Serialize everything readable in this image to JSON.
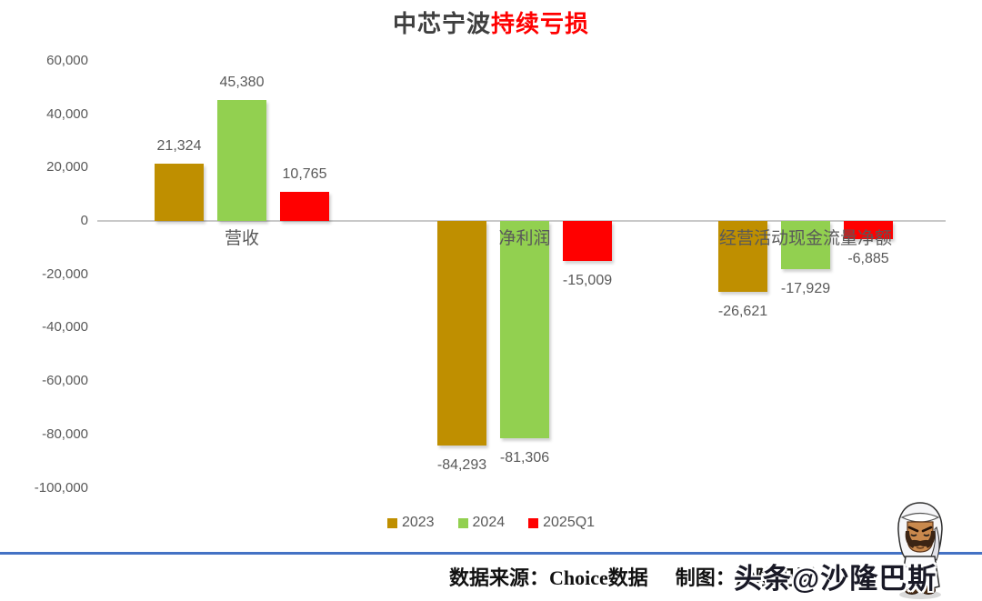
{
  "title": {
    "text_plain": "中芯宁波",
    "text_highlight": "持续亏损",
    "highlight_color": "#ff0000"
  },
  "chart_data": {
    "type": "bar",
    "title": "中芯宁波持续亏损",
    "categories": [
      "营收",
      "净利润",
      "经营活动现金流量净额"
    ],
    "series": [
      {
        "name": "2023",
        "color": "#BF8F00",
        "values": [
          21324,
          -84293,
          -26621
        ],
        "labels": [
          "21,324",
          "-84,293",
          "-26,621"
        ]
      },
      {
        "name": "2024",
        "color": "#92D050",
        "values": [
          45380,
          -81306,
          -17929
        ],
        "labels": [
          "45,380",
          "-81,306",
          "-17,929"
        ]
      },
      {
        "name": "2025Q1",
        "color": "#FF0000",
        "values": [
          10765,
          -15009,
          -6885
        ],
        "labels": [
          "10,765",
          "-15,009",
          "-6,885"
        ]
      }
    ],
    "y_axis": {
      "ticks": [
        "60,000",
        "40,000",
        "20,000",
        "0",
        "-20,000",
        "-40,000",
        "-60,000",
        "-80,000",
        "-100,000"
      ],
      "min": -100000,
      "max": 60000,
      "step": 20000
    },
    "grid": false,
    "legend_position": "bottom",
    "xlabel": "",
    "ylabel": ""
  },
  "legend": {
    "items": [
      {
        "label": "2023",
        "color": "#BF8F00"
      },
      {
        "label": "2024",
        "color": "#92D050"
      },
      {
        "label": "2025Q1",
        "color": "#FF0000"
      }
    ]
  },
  "footer": {
    "source": "数据来源：Choice数据",
    "credit": "制图：沙隆巴斯"
  },
  "watermark": {
    "text": "头条@沙隆巴斯",
    "avatar": "cartoon-arab-man-avatar"
  },
  "colors": {
    "divider": "#4472C4",
    "axis_text": "#595959",
    "axis_line": "#C9C9C9",
    "title_text": "#3F3F3F"
  }
}
